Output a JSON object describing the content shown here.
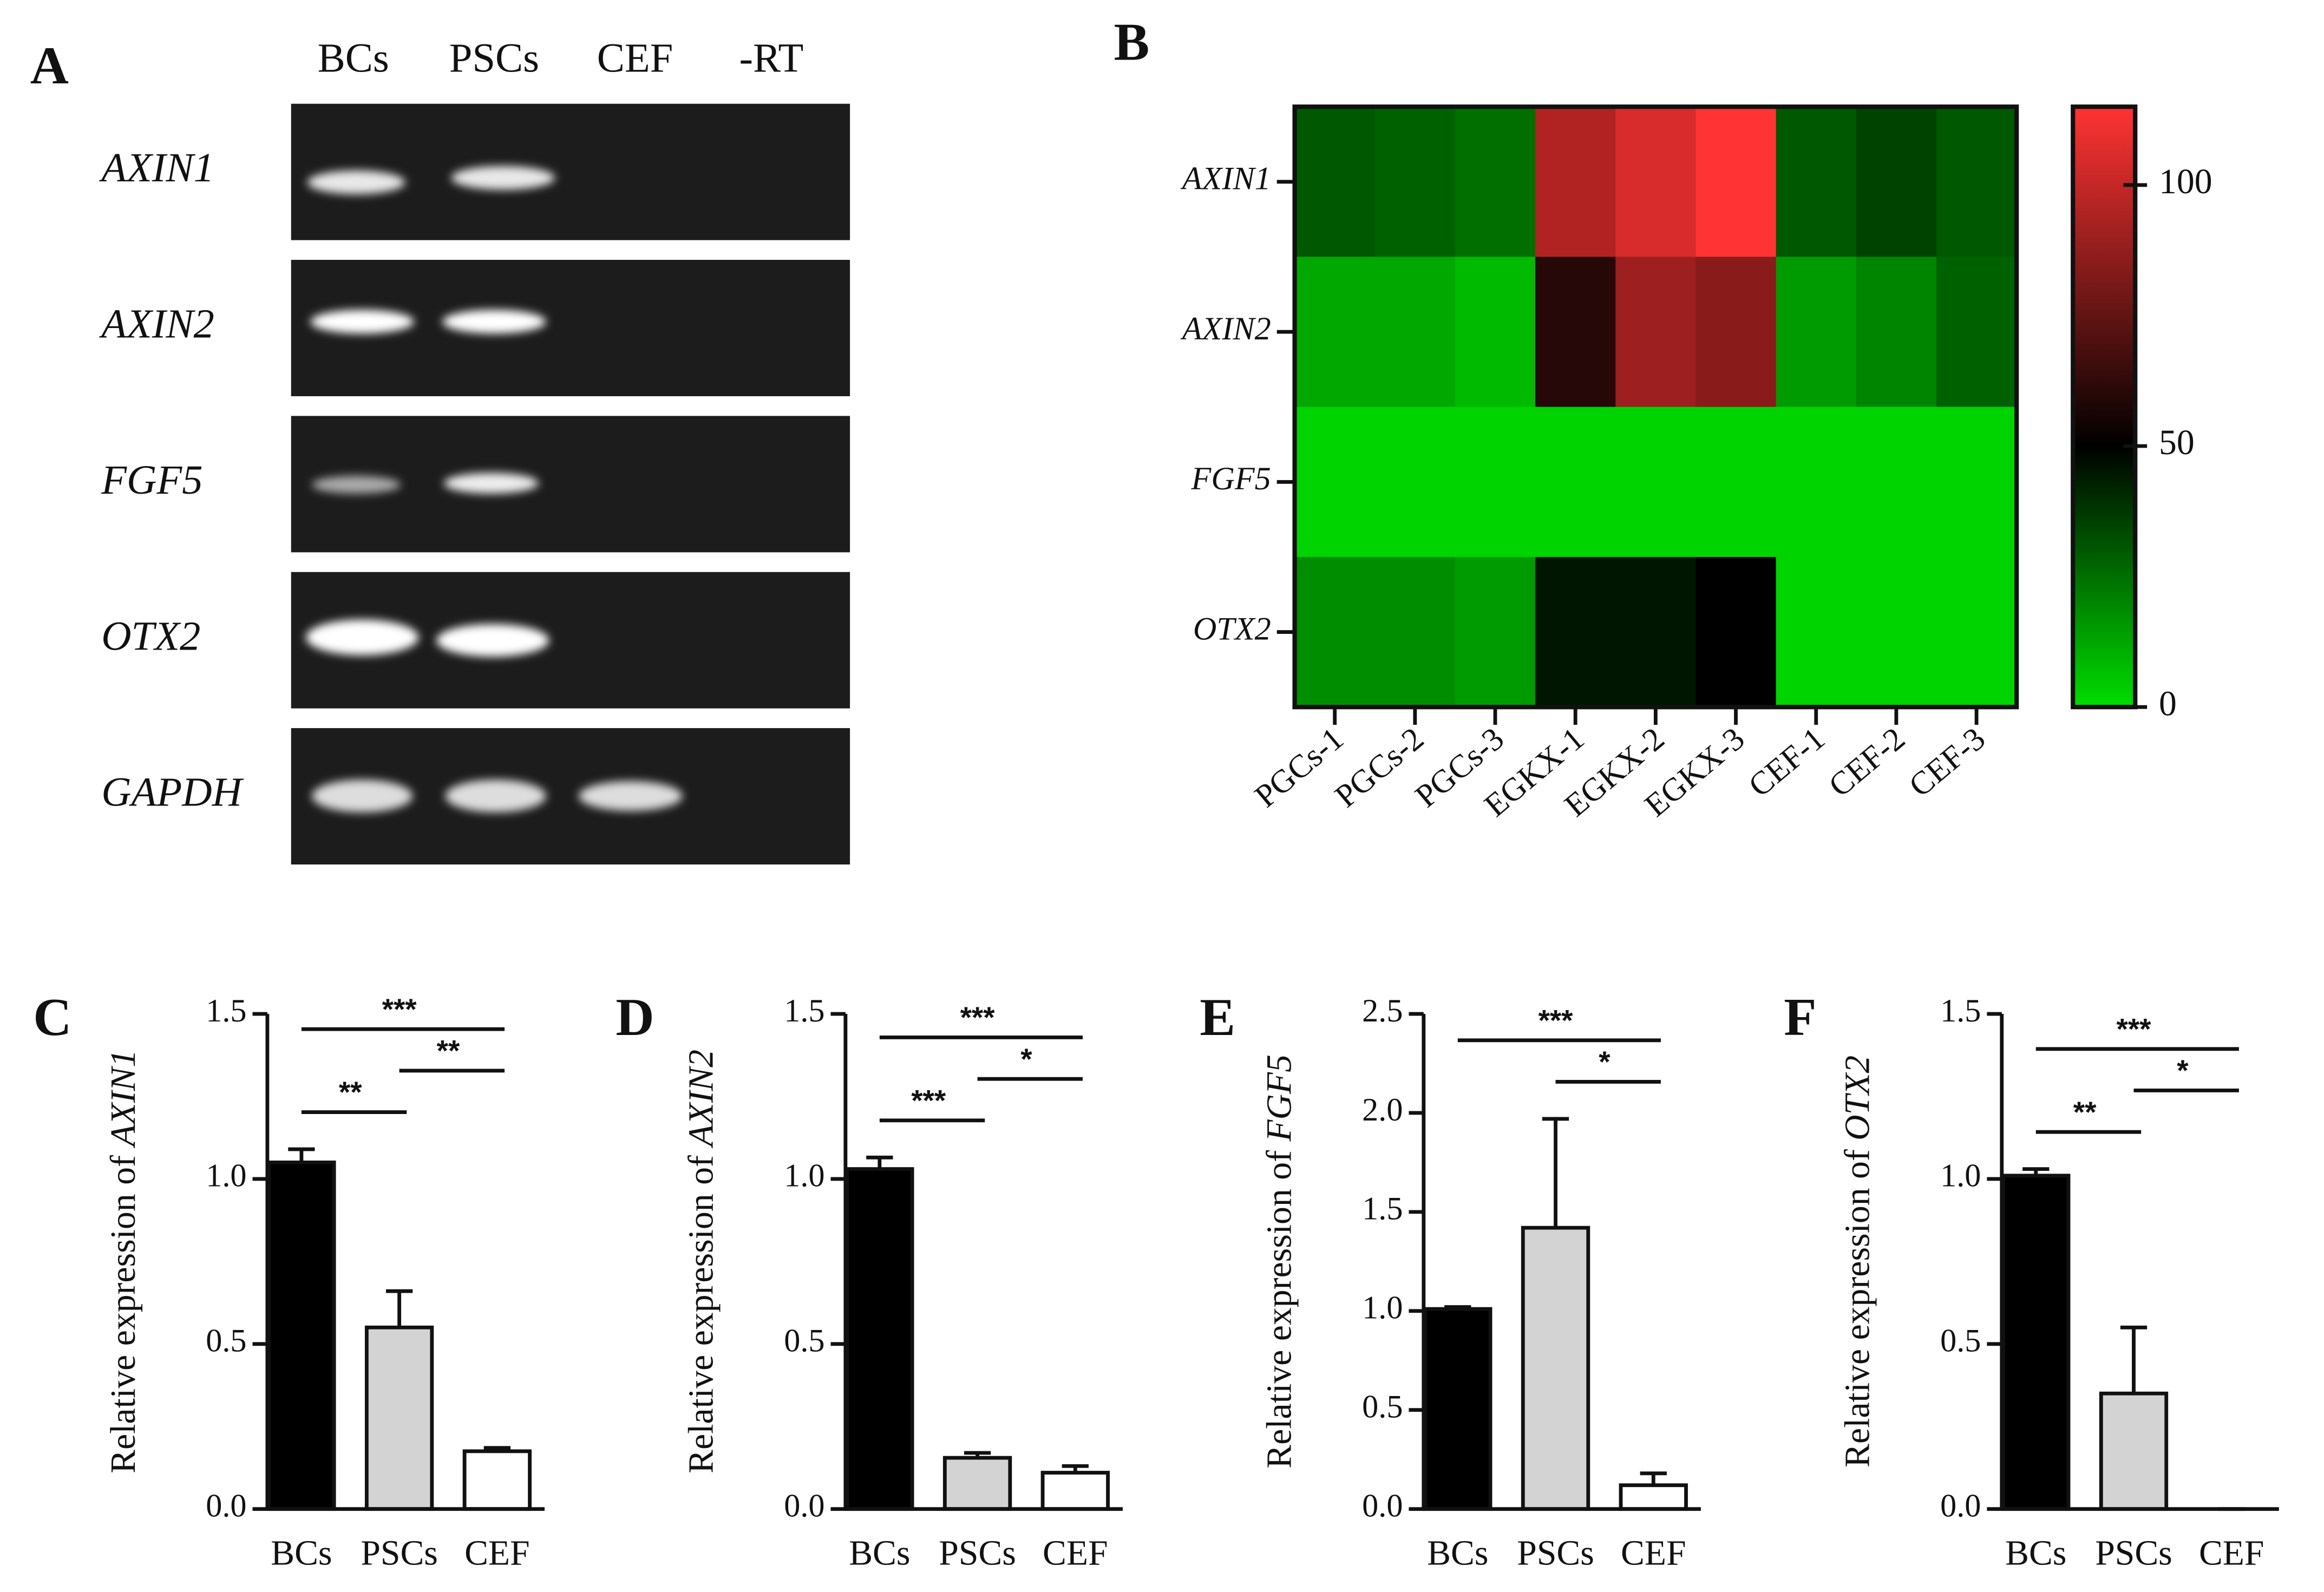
{
  "chart_data": [
    {
      "type": "gel",
      "panel": "A",
      "lanes": [
        "BCs",
        "PSCs",
        "CEF",
        "-RT"
      ],
      "genes": [
        "AXIN1",
        "AXIN2",
        "FGF5",
        "OTX2",
        "GAPDH"
      ]
    },
    {
      "type": "heatmap",
      "panel": "B",
      "x": [
        "PGCs-1",
        "PGCs-2",
        "PGCs-3",
        "EGKX-1",
        "EGKX-2",
        "EGKX-3",
        "CEF-1",
        "CEF-2",
        "CEF-3"
      ],
      "y": [
        "AXIN1",
        "AXIN2",
        "FGF5",
        "OTX2"
      ],
      "values": [
        [
          30,
          28,
          25,
          95,
          105,
          115,
          30,
          35,
          30
        ],
        [
          12,
          12,
          8,
          60,
          90,
          85,
          15,
          20,
          28
        ],
        [
          2,
          2,
          2,
          2,
          2,
          2,
          2,
          2,
          2
        ],
        [
          18,
          18,
          15,
          45,
          45,
          50,
          2,
          2,
          2
        ]
      ],
      "clim": [
        0,
        115
      ],
      "cticks": [
        0,
        50,
        100
      ],
      "colormap": [
        {
          "value": 0,
          "color": "#00dd00"
        },
        {
          "value": 50,
          "color": "#000000"
        },
        {
          "value": 115,
          "color": "#ff3333"
        }
      ]
    },
    {
      "type": "bar",
      "panel": "C",
      "ylabel": [
        "Relative expression of",
        "AXIN1"
      ],
      "categories": [
        "BCs",
        "PSCs",
        "CEF"
      ],
      "values": [
        1.05,
        0.55,
        0.175
      ],
      "errors": [
        0.04,
        0.11,
        0.01
      ],
      "colors": [
        "#000000",
        "#d3d3d3",
        "#ffffff"
      ],
      "ylim": [
        0,
        1.5
      ],
      "yticks": [
        {
          "value": 0,
          "label": "0.0"
        },
        {
          "value": 0.5,
          "label": "0.5"
        },
        {
          "value": 1,
          "label": "1.0"
        },
        {
          "value": 1.5,
          "label": "1.5"
        }
      ],
      "significance": [
        {
          "groups": [
            "BCs",
            "CEF"
          ],
          "label": "***"
        },
        {
          "groups": [
            "BCs",
            "PSCs"
          ],
          "label": "**"
        },
        {
          "groups": [
            "PSCs",
            "CEF"
          ],
          "label": "**"
        }
      ]
    },
    {
      "type": "bar",
      "panel": "D",
      "ylabel": [
        "Relative expression of",
        "AXIN2"
      ],
      "categories": [
        "BCs",
        "PSCs",
        "CEF"
      ],
      "values": [
        1.03,
        0.155,
        0.11
      ],
      "errors": [
        0.035,
        0.015,
        0.02
      ],
      "colors": [
        "#000000",
        "#d3d3d3",
        "#ffffff"
      ],
      "ylim": [
        0,
        1.5
      ],
      "yticks": [
        {
          "value": 0,
          "label": "0.0"
        },
        {
          "value": 0.5,
          "label": "0.5"
        },
        {
          "value": 1,
          "label": "1.0"
        },
        {
          "value": 1.5,
          "label": "1.5"
        }
      ],
      "significance": [
        {
          "groups": [
            "BCs",
            "CEF"
          ],
          "label": "***"
        },
        {
          "groups": [
            "BCs",
            "PSCs"
          ],
          "label": "***"
        },
        {
          "groups": [
            "PSCs",
            "CEF"
          ],
          "label": "*"
        }
      ]
    },
    {
      "type": "bar",
      "panel": "E",
      "ylabel": [
        "Relative expression of",
        "FGF5"
      ],
      "categories": [
        "BCs",
        "PSCs",
        "CEF"
      ],
      "values": [
        1.01,
        1.42,
        0.12
      ],
      "errors": [
        0.01,
        0.55,
        0.06
      ],
      "colors": [
        "#000000",
        "#d3d3d3",
        "#ffffff"
      ],
      "ylim": [
        0,
        2.5
      ],
      "yticks": [
        {
          "value": 0,
          "label": "0.0"
        },
        {
          "value": 0.5,
          "label": "0.5"
        },
        {
          "value": 1,
          "label": "1.0"
        },
        {
          "value": 1.5,
          "label": "1.5"
        },
        {
          "value": 2,
          "label": "2.0"
        },
        {
          "value": 2.5,
          "label": "2.5"
        }
      ],
      "significance": [
        {
          "groups": [
            "BCs",
            "CEF"
          ],
          "label": "***"
        },
        {
          "groups": [
            "PSCs",
            "CEF"
          ],
          "label": "*"
        }
      ]
    },
    {
      "type": "bar",
      "panel": "F",
      "ylabel": [
        "Relative expression of",
        "OTX2"
      ],
      "categories": [
        "BCs",
        "PSCs",
        "CEF"
      ],
      "values": [
        1.01,
        0.35,
        0
      ],
      "errors": [
        0.02,
        0.2,
        0
      ],
      "colors": [
        "#000000",
        "#d3d3d3",
        "#ffffff"
      ],
      "ylim": [
        0,
        1.5
      ],
      "yticks": [
        {
          "value": 0,
          "label": "0.0"
        },
        {
          "value": 0.5,
          "label": "0.5"
        },
        {
          "value": 1,
          "label": "1.0"
        },
        {
          "value": 1.5,
          "label": "1.5"
        }
      ],
      "significance": [
        {
          "groups": [
            "BCs",
            "CEF"
          ],
          "label": "***"
        },
        {
          "groups": [
            "BCs",
            "PSCs"
          ],
          "label": "**"
        },
        {
          "groups": [
            "PSCs",
            "CEF"
          ],
          "label": "*"
        }
      ]
    }
  ]
}
